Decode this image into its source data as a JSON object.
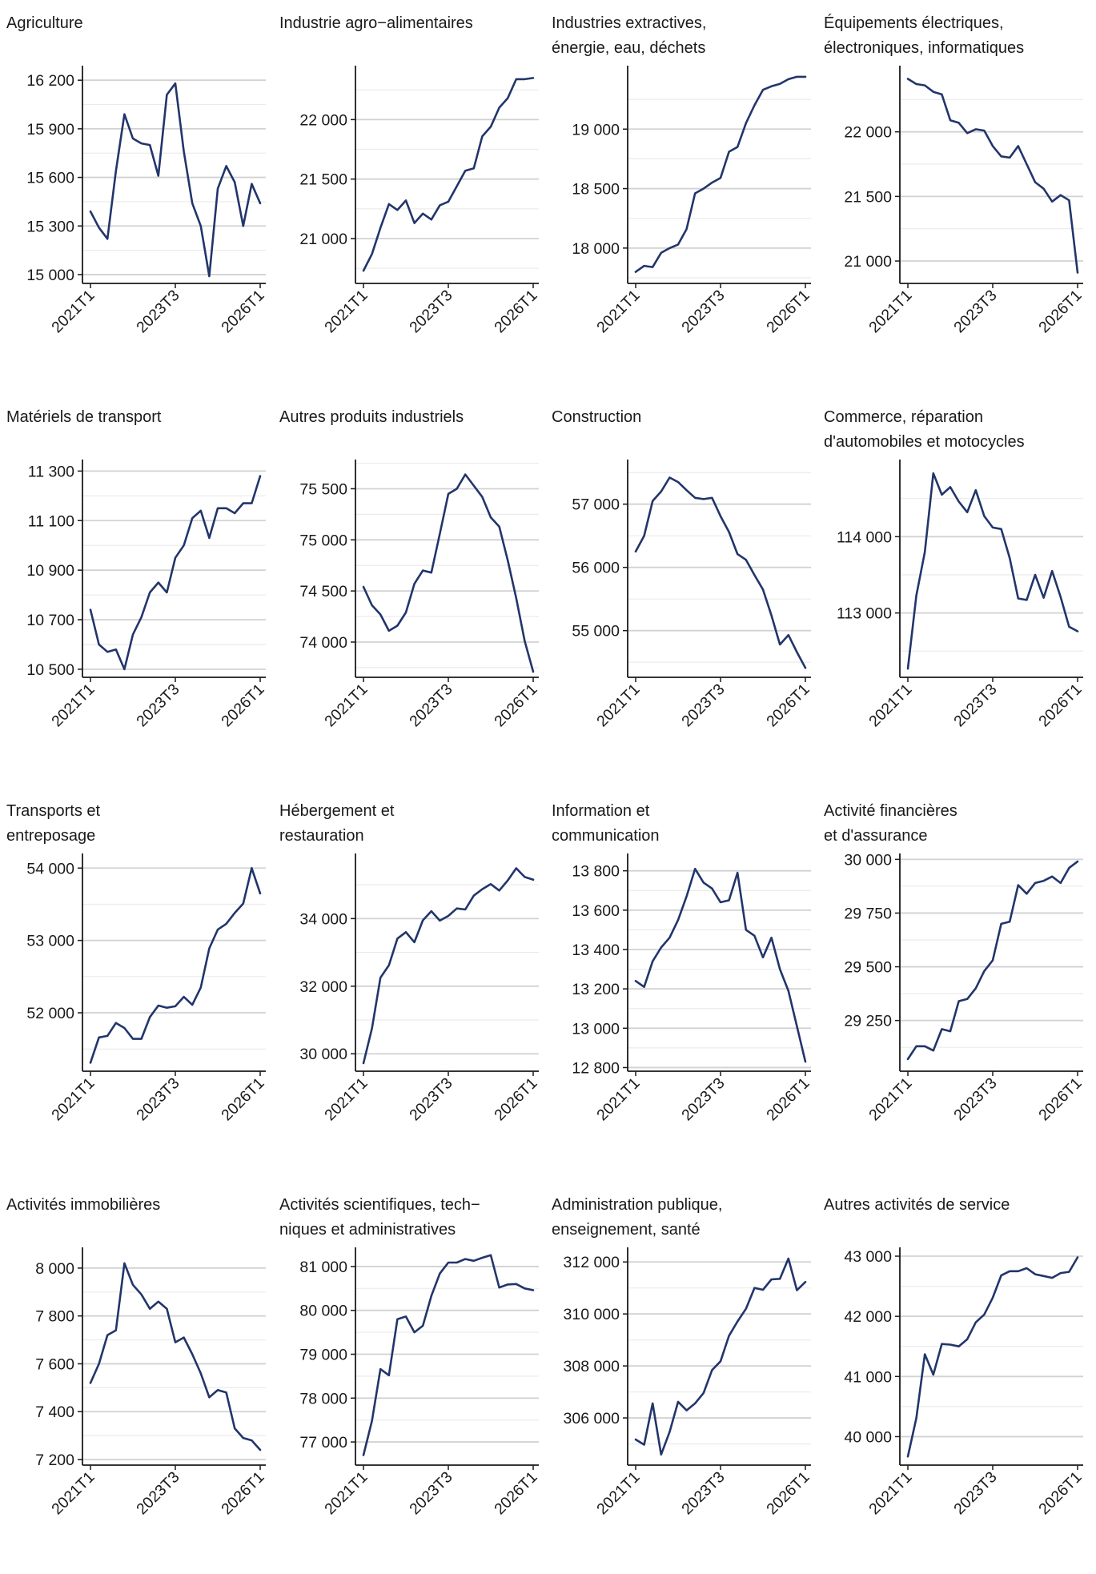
{
  "colors": {
    "line": "#22356b",
    "grid": "#d2d2d2",
    "axis": "#1a1a1a"
  },
  "chart_data": [
    {
      "type": "line",
      "title": "Agriculture",
      "xticks": [
        "2021T1",
        "2023T3",
        "2026T1"
      ],
      "ylim": [
        14980,
        16280
      ],
      "yticks": [
        15000,
        15300,
        15600,
        15900,
        16200
      ],
      "ytick_labels": [
        "15 000",
        "15 300",
        "15 600",
        "15 900",
        "16 200"
      ],
      "values": [
        15390,
        15290,
        15220,
        15640,
        15990,
        15840,
        15810,
        15800,
        15610,
        16110,
        16180,
        15760,
        15440,
        15300,
        14990,
        15530,
        15670,
        15570,
        15300,
        15560,
        15440
      ]
    },
    {
      "type": "line",
      "title": "Industrie agro−alimentaires",
      "xticks": [
        "2021T1",
        "2023T3",
        "2026T1"
      ],
      "ylim": [
        20670,
        22440
      ],
      "yticks": [
        21000,
        21500,
        22000
      ],
      "ytick_labels": [
        "21 000",
        "21 500",
        "22 000"
      ],
      "values": [
        20730,
        20870,
        21090,
        21290,
        21240,
        21320,
        21130,
        21210,
        21160,
        21280,
        21310,
        21440,
        21570,
        21590,
        21860,
        21940,
        22100,
        22180,
        22340,
        22340,
        22350
      ]
    },
    {
      "type": "line",
      "title": "Industries extractives,\nénergie, eau, déchets",
      "xticks": [
        "2021T1",
        "2023T3",
        "2026T1"
      ],
      "ylim": [
        17750,
        19520
      ],
      "yticks": [
        18000,
        18500,
        19000
      ],
      "ytick_labels": [
        "18 000",
        "18 500",
        "19 000"
      ],
      "values": [
        17800,
        17850,
        17840,
        17960,
        18000,
        18030,
        18160,
        18460,
        18500,
        18550,
        18590,
        18810,
        18850,
        19050,
        19200,
        19330,
        19360,
        19380,
        19420,
        19440,
        19440
      ]
    },
    {
      "type": "line",
      "title": "Équipements électriques,\nélectroniques, informatiques",
      "xticks": [
        "2021T1",
        "2023T3",
        "2026T1"
      ],
      "ylim": [
        20870,
        22500
      ],
      "yticks": [
        21000,
        21500,
        22000
      ],
      "ytick_labels": [
        "21 000",
        "21 500",
        "22 000"
      ],
      "values": [
        22410,
        22370,
        22360,
        22310,
        22290,
        22090,
        22070,
        21990,
        22020,
        22010,
        21890,
        21810,
        21800,
        21890,
        21750,
        21610,
        21560,
        21460,
        21510,
        21470,
        20910
      ]
    },
    {
      "type": "line",
      "title": "Matériels de transport",
      "xticks": [
        "2021T1",
        "2023T3",
        "2026T1"
      ],
      "ylim": [
        10490,
        11340
      ],
      "yticks": [
        10500,
        10700,
        10900,
        11100,
        11300
      ],
      "ytick_labels": [
        "10 500",
        "10 700",
        "10 900",
        "11 100",
        "11 300"
      ],
      "values": [
        10740,
        10600,
        10570,
        10580,
        10500,
        10640,
        10710,
        10810,
        10850,
        10810,
        10950,
        11000,
        11110,
        11140,
        11030,
        11150,
        11150,
        11130,
        11170,
        11170,
        11280
      ]
    },
    {
      "type": "line",
      "title": "Autres produits industriels",
      "xticks": [
        "2021T1",
        "2023T3",
        "2026T1"
      ],
      "ylim": [
        73710,
        75770
      ],
      "yticks": [
        74000,
        74500,
        75000,
        75500
      ],
      "ytick_labels": [
        "74 000",
        "74 500",
        "75 000",
        "75 500"
      ],
      "values": [
        74540,
        74360,
        74270,
        74110,
        74160,
        74290,
        74570,
        74700,
        74680,
        75060,
        75450,
        75500,
        75640,
        75530,
        75420,
        75220,
        75130,
        74800,
        74430,
        74010,
        73710
      ]
    },
    {
      "type": "line",
      "title": "Construction",
      "xticks": [
        "2021T1",
        "2023T3",
        "2026T1"
      ],
      "ylim": [
        54350,
        57680
      ],
      "yticks": [
        55000,
        56000,
        57000
      ],
      "ytick_labels": [
        "55 000",
        "56 000",
        "57 000"
      ],
      "values": [
        56250,
        56500,
        57050,
        57200,
        57420,
        57350,
        57220,
        57100,
        57080,
        57100,
        56810,
        56560,
        56210,
        56120,
        55880,
        55650,
        55240,
        54780,
        54930,
        54660,
        54410
      ]
    },
    {
      "type": "line",
      "title": "Commerce, réparation\nd'automobiles et motocycles",
      "xticks": [
        "2021T1",
        "2023T3",
        "2026T1"
      ],
      "ylim": [
        112230,
        114990
      ],
      "yticks": [
        113000,
        114000
      ],
      "ytick_labels": [
        "113 000",
        "114 000"
      ],
      "values": [
        112270,
        113230,
        113800,
        114830,
        114550,
        114650,
        114460,
        114320,
        114610,
        114270,
        114120,
        114100,
        113720,
        113190,
        113170,
        113500,
        113200,
        113550,
        113210,
        112820,
        112760
      ]
    },
    {
      "type": "line",
      "title": "Transports et\nentreposage",
      "xticks": [
        "2021T1",
        "2023T3",
        "2026T1"
      ],
      "ylim": [
        51270,
        54180
      ],
      "yticks": [
        52000,
        53000,
        54000
      ],
      "ytick_labels": [
        "52 000",
        "53 000",
        "54 000"
      ],
      "values": [
        51310,
        51660,
        51680,
        51860,
        51790,
        51640,
        51640,
        51940,
        52100,
        52070,
        52090,
        52220,
        52110,
        52350,
        52890,
        53150,
        53230,
        53380,
        53510,
        54000,
        53650
      ]
    },
    {
      "type": "line",
      "title": "Hébergement et\nrestauration",
      "xticks": [
        "2021T1",
        "2023T3",
        "2026T1"
      ],
      "ylim": [
        29650,
        35880
      ],
      "yticks": [
        30000,
        32000,
        34000
      ],
      "ytick_labels": [
        "30 000",
        "32 000",
        "34 000"
      ],
      "values": [
        29720,
        30750,
        32250,
        32620,
        33410,
        33600,
        33300,
        33950,
        34220,
        33940,
        34080,
        34300,
        34270,
        34680,
        34870,
        35020,
        34830,
        35130,
        35490,
        35230,
        35150
      ]
    },
    {
      "type": "line",
      "title": "Information et\ncommunication",
      "xticks": [
        "2021T1",
        "2023T3",
        "2026T1"
      ],
      "ylim": [
        12810,
        13880
      ],
      "yticks": [
        12800,
        13000,
        13200,
        13400,
        13600,
        13800
      ],
      "ytick_labels": [
        "12 800",
        "13 000",
        "13 200",
        "13 400",
        "13 600",
        "13 800"
      ],
      "values": [
        13240,
        13210,
        13340,
        13410,
        13460,
        13550,
        13670,
        13810,
        13740,
        13710,
        13640,
        13650,
        13790,
        13500,
        13470,
        13360,
        13460,
        13300,
        13190,
        13010,
        12830
      ]
    },
    {
      "type": "line",
      "title": "Activité financières\net d'assurance",
      "xticks": [
        "2021T1",
        "2023T3",
        "2026T1"
      ],
      "ylim": [
        29040,
        30020
      ],
      "yticks": [
        29250,
        29500,
        29750,
        30000
      ],
      "ytick_labels": [
        "29 250",
        "29 500",
        "29 750",
        "30 000"
      ],
      "values": [
        29070,
        29130,
        29130,
        29110,
        29210,
        29200,
        29340,
        29350,
        29400,
        29480,
        29530,
        29700,
        29710,
        29880,
        29840,
        29890,
        29900,
        29920,
        29890,
        29960,
        29990
      ]
    },
    {
      "type": "line",
      "title": "Activités immobilières",
      "xticks": [
        "2021T1",
        "2023T3",
        "2026T1"
      ],
      "ylim": [
        7200,
        8080
      ],
      "yticks": [
        7200,
        7400,
        7600,
        7800,
        8000
      ],
      "ytick_labels": [
        "7 200",
        "7 400",
        "7 600",
        "7 800",
        "8 000"
      ],
      "values": [
        7520,
        7600,
        7720,
        7740,
        8020,
        7930,
        7890,
        7830,
        7860,
        7830,
        7690,
        7710,
        7640,
        7560,
        7460,
        7490,
        7480,
        7330,
        7290,
        7280,
        7240
      ]
    },
    {
      "type": "line",
      "title": "Activités scientifiques, tech−\nniques et administratives",
      "xticks": [
        "2021T1",
        "2023T3",
        "2026T1"
      ],
      "ylim": [
        76600,
        81400
      ],
      "yticks": [
        77000,
        78000,
        79000,
        80000,
        81000
      ],
      "ytick_labels": [
        "77 000",
        "78 000",
        "79 000",
        "80 000",
        "81 000"
      ],
      "values": [
        76700,
        77480,
        78660,
        78520,
        79800,
        79860,
        79500,
        79650,
        80330,
        80840,
        81090,
        81090,
        81170,
        81130,
        81200,
        81260,
        80520,
        80590,
        80600,
        80500,
        80460
      ]
    },
    {
      "type": "line",
      "title": "Administration publique,\nenseignement, santé",
      "xticks": [
        "2021T1",
        "2023T3",
        "2026T1"
      ],
      "ylim": [
        304400,
        312500
      ],
      "yticks": [
        306000,
        308000,
        310000,
        312000
      ],
      "ytick_labels": [
        "306 000",
        "308 000",
        "310 000",
        "312 000"
      ],
      "values": [
        305170,
        304970,
        306560,
        304590,
        305460,
        306620,
        306290,
        306560,
        306960,
        307840,
        308180,
        309160,
        309710,
        310200,
        311000,
        310930,
        311330,
        311350,
        312130,
        310910,
        311230
      ]
    },
    {
      "type": "line",
      "title": "Autres activités de service",
      "xticks": [
        "2021T1",
        "2023T3",
        "2026T1"
      ],
      "ylim": [
        39620,
        43120
      ],
      "yticks": [
        40000,
        41000,
        42000,
        43000
      ],
      "ytick_labels": [
        "40 000",
        "41 000",
        "42 000",
        "43 000"
      ],
      "values": [
        39670,
        40310,
        41370,
        41030,
        41540,
        41530,
        41500,
        41620,
        41900,
        42030,
        42310,
        42680,
        42750,
        42750,
        42800,
        42700,
        42670,
        42640,
        42720,
        42740,
        42980
      ]
    }
  ]
}
